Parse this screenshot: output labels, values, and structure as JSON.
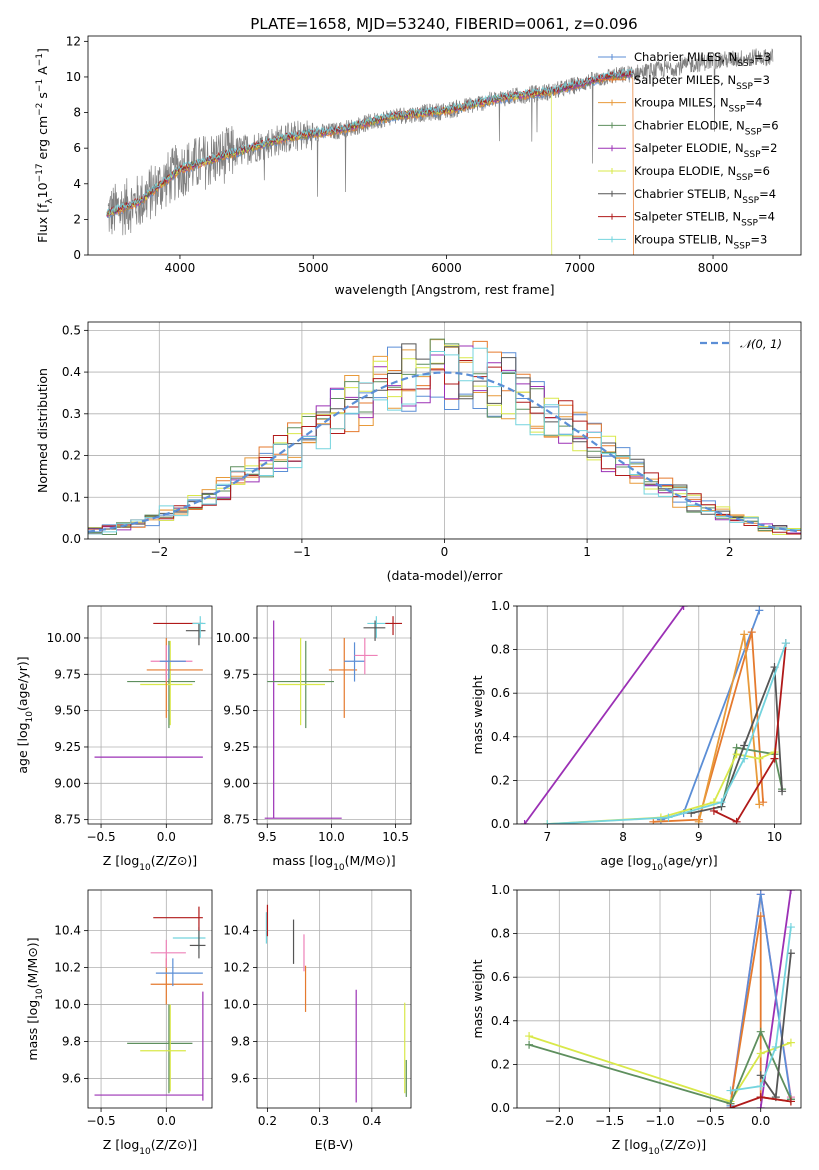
{
  "title": "PLATE=1658, MJD=53240, FIBERID=0061, z=0.096",
  "colors": {
    "series": [
      "#5b8ed6",
      "#e57a2e",
      "#e89a3a",
      "#5e8f5e",
      "#9b30b5",
      "#d9e84a",
      "#555555",
      "#b01a1a",
      "#74d4de"
    ],
    "spectrum": "#808080",
    "gaussian": "#5b8ed6",
    "extra_pink": "#ee82b8"
  },
  "legend": [
    {
      "name": "Chabrier MILES, N",
      "sub": "SSP",
      "tail": "=3"
    },
    {
      "name": "Salpeter MILES, N",
      "sub": "SSP",
      "tail": "=3"
    },
    {
      "name": "Kroupa MILES, N",
      "sub": "SSP",
      "tail": "=4"
    },
    {
      "name": "Chabrier ELODIE, N",
      "sub": "SSP",
      "tail": "=6"
    },
    {
      "name": "Salpeter ELODIE, N",
      "sub": "SSP",
      "tail": "=2"
    },
    {
      "name": "Kroupa ELODIE, N",
      "sub": "SSP",
      "tail": "=6"
    },
    {
      "name": "Chabrier STELIB, N",
      "sub": "SSP",
      "tail": "=4"
    },
    {
      "name": "Salpeter STELIB, N",
      "sub": "SSP",
      "tail": "=4"
    },
    {
      "name": "Kroupa STELIB, N",
      "sub": "SSP",
      "tail": "=3"
    }
  ],
  "chart_data": [
    {
      "type": "line",
      "panel": "spectrum",
      "xlabel": "wavelength [Angstrom, rest frame]",
      "ylabel": {
        "a": "Flux [f",
        "b": "λ",
        "c": "10",
        "d": "−17",
        "e": " erg cm",
        "f": "−2",
        "g": " s",
        "h": "−1",
        "i": " A",
        "j": "−1",
        "k": "]"
      },
      "xlim": [
        3310,
        8660
      ],
      "ylim": [
        0,
        12.3
      ],
      "xticks": [
        "4000",
        "5000",
        "6000",
        "7000",
        "8000"
      ],
      "yticks": [
        "0",
        "2",
        "4",
        "6",
        "8",
        "10",
        "12"
      ],
      "trend_x": [
        3450,
        3700,
        4000,
        4300,
        4800,
        5200,
        5600,
        6000,
        6400,
        6800,
        7200,
        7600,
        8000,
        8300
      ],
      "trend_y": [
        2.3,
        3.0,
        4.8,
        5.5,
        6.6,
        7.0,
        7.8,
        8.1,
        8.8,
        9.2,
        10.0,
        10.4,
        10.9,
        11.1
      ]
    },
    {
      "type": "histogram",
      "panel": "residuals",
      "xlabel": "(data-model)/error",
      "ylabel": "Normed distribution",
      "xlim": [
        -2.5,
        2.5
      ],
      "ylim": [
        0,
        0.52
      ],
      "xticks": [
        "−2",
        "−1",
        "0",
        "1",
        "2"
      ],
      "yticks": [
        "0.0",
        "0.1",
        "0.2",
        "0.3",
        "0.4",
        "0.5"
      ],
      "bin_width": 0.1,
      "gaussian_label": {
        "a": "𝒩",
        "b": "(0, 1)"
      }
    },
    {
      "type": "scatter",
      "panel": "age-vs-Z",
      "xlabel": {
        "a": "Z [log",
        "b": "10",
        "c": "(Z/Z",
        "d": "⊙",
        "e": ")]"
      },
      "ylabel": {
        "a": "age  [log",
        "b": "10",
        "c": "(age/yr)]"
      },
      "xlim": [
        -0.6,
        0.35
      ],
      "ylim": [
        8.72,
        10.22
      ],
      "xticks": [
        "−0.5",
        "0.0"
      ],
      "yticks": [
        "8.75",
        "9.00",
        "9.25",
        "9.50",
        "9.75",
        "10.00"
      ],
      "points": [
        {
          "c": 4,
          "x": -0.05,
          "xe": 0.33,
          "y": 9.18,
          "ye": 0.0,
          "x0": -0.55,
          "x1": 0.28,
          "y0": 8.76,
          "y1": 8.76
        },
        {
          "c": 3,
          "x": 0.02,
          "y": 9.7,
          "x0": -0.3,
          "x1": 0.22,
          "y0": 9.38,
          "y1": 9.98
        },
        {
          "c": 5,
          "x": 0.03,
          "y": 9.68,
          "x0": -0.2,
          "x1": 0.2,
          "y0": 9.4,
          "y1": 9.98
        },
        {
          "c": 1,
          "x": 0.0,
          "y": 9.78,
          "x0": -0.15,
          "x1": 0.28,
          "y0": 9.45,
          "y1": 10.0
        },
        {
          "c": "pink",
          "x": 0.0,
          "y": 9.84,
          "x0": -0.12,
          "x1": 0.2,
          "y0": 9.7,
          "y1": 9.95
        },
        {
          "c": 0,
          "x": 0.02,
          "y": 9.84,
          "x0": -0.05,
          "x1": 0.15,
          "y0": 9.72,
          "y1": 9.95
        },
        {
          "c": 7,
          "x": 0.1,
          "y": 10.1,
          "x0": -0.1,
          "x1": 0.28,
          "y0": 10.1,
          "y1": 10.1
        },
        {
          "c": 6,
          "x": 0.25,
          "y": 10.05,
          "x0": 0.15,
          "x1": 0.3,
          "y0": 9.95,
          "y1": 10.1
        },
        {
          "c": 8,
          "x": 0.26,
          "y": 10.1,
          "x0": 0.2,
          "x1": 0.3,
          "y0": 10.0,
          "y1": 10.15
        }
      ]
    },
    {
      "type": "scatter",
      "panel": "age-vs-mass",
      "xlabel": {
        "a": "mass [log",
        "b": "10",
        "c": "(M/M",
        "d": "⊙",
        "e": ")]"
      },
      "xlim": [
        9.42,
        10.62
      ],
      "ylim": [
        8.72,
        10.22
      ],
      "xticks": [
        "9.5",
        "10.0",
        "10.5"
      ],
      "yticks": [
        "8.75",
        "9.00",
        "9.25",
        "9.50",
        "9.75",
        "10.00"
      ],
      "points": [
        {
          "c": 4,
          "x": 9.55,
          "y": 8.76,
          "x0": 9.48,
          "x1": 10.08,
          "y0": 8.76,
          "y1": 10.12
        },
        {
          "c": 3,
          "x": 9.8,
          "y": 9.7,
          "x0": 9.5,
          "x1": 10.02,
          "y0": 9.38,
          "y1": 9.98
        },
        {
          "c": 5,
          "x": 9.76,
          "y": 9.68,
          "x0": 9.58,
          "x1": 9.95,
          "y0": 9.4,
          "y1": 10.0
        },
        {
          "c": 1,
          "x": 10.1,
          "y": 9.78,
          "x0": 9.98,
          "x1": 10.2,
          "y0": 9.45,
          "y1": 10.0
        },
        {
          "c": 0,
          "x": 10.18,
          "y": 9.84,
          "x0": 10.1,
          "x1": 10.26,
          "y0": 9.7,
          "y1": 9.97
        },
        {
          "c": "pink",
          "x": 10.26,
          "y": 9.88,
          "x0": 10.18,
          "x1": 10.36,
          "y0": 9.75,
          "y1": 10.0
        },
        {
          "c": 8,
          "x": 10.35,
          "y": 10.1,
          "x0": 10.28,
          "x1": 10.45,
          "y0": 10.0,
          "y1": 10.15
        },
        {
          "c": 6,
          "x": 10.34,
          "y": 10.07,
          "x0": 10.25,
          "x1": 10.42,
          "y0": 9.98,
          "y1": 10.12
        },
        {
          "c": 7,
          "x": 10.48,
          "y": 10.1,
          "x0": 10.42,
          "x1": 10.55,
          "y0": 10.02,
          "y1": 10.15
        }
      ]
    },
    {
      "type": "line",
      "panel": "mass-weight-vs-age",
      "xlabel": {
        "a": "age  [log",
        "b": "10",
        "c": "(age/yr)]"
      },
      "ylabel": "mass weight",
      "xlim": [
        6.6,
        10.35
      ],
      "ylim": [
        0,
        1
      ],
      "xticks": [
        "7",
        "8",
        "9",
        "10"
      ],
      "yticks": [
        "0.0",
        "0.2",
        "0.4",
        "0.6",
        "0.8",
        "1.0"
      ],
      "series": [
        {
          "c": 4,
          "x": [
            6.7,
            8.8
          ],
          "y": [
            0.0,
            1.0
          ]
        },
        {
          "c": 0,
          "x": [
            8.5,
            8.8,
            9.8
          ],
          "y": [
            0.02,
            0.05,
            0.98
          ]
        },
        {
          "c": 1,
          "x": [
            8.4,
            9.0,
            9.7,
            9.85
          ],
          "y": [
            0.01,
            0.02,
            0.88,
            0.1
          ]
        },
        {
          "c": 2,
          "x": [
            9.0,
            9.6,
            9.8
          ],
          "y": [
            0.01,
            0.87,
            0.09
          ]
        },
        {
          "c": 3,
          "x": [
            9.3,
            9.5,
            10.0,
            10.1
          ],
          "y": [
            0.08,
            0.35,
            0.32,
            0.16
          ]
        },
        {
          "c": 5,
          "x": [
            7.0,
            8.5,
            9.2,
            9.5,
            9.8,
            10.0
          ],
          "y": [
            0.0,
            0.03,
            0.1,
            0.32,
            0.3,
            0.33
          ]
        },
        {
          "c": 6,
          "x": [
            8.9,
            9.3,
            9.6,
            10.0,
            10.1
          ],
          "y": [
            0.05,
            0.08,
            0.36,
            0.72,
            0.15
          ]
        },
        {
          "c": 7,
          "x": [
            9.2,
            9.5,
            10.0,
            10.15
          ],
          "y": [
            0.06,
            0.01,
            0.3,
            0.83
          ]
        },
        {
          "c": 8,
          "x": [
            7.0,
            8.6,
            9.3,
            9.6,
            10.15
          ],
          "y": [
            0.0,
            0.03,
            0.1,
            0.3,
            0.83
          ]
        }
      ]
    },
    {
      "type": "scatter",
      "panel": "mass-vs-Z",
      "xlabel": {
        "a": "Z [log",
        "b": "10",
        "c": "(Z/Z",
        "d": "⊙",
        "e": ")]"
      },
      "ylabel": {
        "a": "mass [log",
        "b": "10",
        "c": "(M/M",
        "d": "⊙",
        "e": ")]"
      },
      "xlim": [
        -0.6,
        0.35
      ],
      "ylim": [
        9.44,
        10.62
      ],
      "xticks": [
        "−0.5",
        "0.0"
      ],
      "yticks": [
        "9.6",
        "9.8",
        "10.0",
        "10.2",
        "10.4"
      ],
      "points": [
        {
          "c": 4,
          "x": 0.28,
          "y": 9.51,
          "x0": -0.55,
          "x1": 0.28,
          "y0": 9.48,
          "y1": 10.07
        },
        {
          "c": 3,
          "x": 0.02,
          "y": 9.79,
          "x0": -0.3,
          "x1": 0.2,
          "y0": 9.52,
          "y1": 10.0
        },
        {
          "c": 5,
          "x": 0.03,
          "y": 9.75,
          "x0": -0.2,
          "x1": 0.15,
          "y0": 9.53,
          "y1": 10.0
        },
        {
          "c": 1,
          "x": 0.0,
          "y": 10.11,
          "x0": -0.12,
          "x1": 0.28,
          "y0": 10.0,
          "y1": 10.25
        },
        {
          "c": 0,
          "x": 0.05,
          "y": 10.17,
          "x0": -0.08,
          "x1": 0.28,
          "y0": 10.1,
          "y1": 10.25
        },
        {
          "c": "pink",
          "x": 0.0,
          "y": 10.28,
          "x0": -0.12,
          "x1": 0.15,
          "y0": 10.2,
          "y1": 10.35
        },
        {
          "c": 8,
          "x": 0.25,
          "y": 10.36,
          "x0": 0.05,
          "x1": 0.3,
          "y0": 10.3,
          "y1": 10.42
        },
        {
          "c": 6,
          "x": 0.25,
          "y": 10.32,
          "x0": 0.18,
          "x1": 0.3,
          "y0": 10.25,
          "y1": 10.4
        },
        {
          "c": 7,
          "x": 0.25,
          "y": 10.47,
          "x0": -0.1,
          "x1": 0.28,
          "y0": 10.4,
          "y1": 10.53
        }
      ]
    },
    {
      "type": "scatter",
      "panel": "mass-vs-ebv",
      "xlabel": "E(B-V)",
      "xlim": [
        0.18,
        0.475
      ],
      "ylim": [
        9.44,
        10.62
      ],
      "xticks": [
        "0.2",
        "0.3",
        "0.4"
      ],
      "yticks": [
        "9.6",
        "9.8",
        "10.0",
        "10.2",
        "10.4"
      ],
      "points": [
        {
          "c": 8,
          "x": 0.198,
          "y": 10.42,
          "y0": 10.33,
          "y1": 10.5
        },
        {
          "c": 7,
          "x": 0.2,
          "y": 10.45,
          "y0": 10.37,
          "y1": 10.54
        },
        {
          "c": 6,
          "x": 0.25,
          "y": 10.34,
          "y0": 10.22,
          "y1": 10.46
        },
        {
          "c": "pink",
          "x": 0.27,
          "y": 10.28,
          "y0": 10.18,
          "y1": 10.38
        },
        {
          "c": 1,
          "x": 0.273,
          "y": 10.1,
          "y0": 9.96,
          "y1": 10.21
        },
        {
          "c": 4,
          "x": 0.37,
          "y": 9.7,
          "y0": 9.47,
          "y1": 10.08
        },
        {
          "c": 5,
          "x": 0.463,
          "y": 9.75,
          "y0": 9.52,
          "y1": 10.01
        },
        {
          "c": 3,
          "x": 0.466,
          "y": 9.55,
          "y0": 9.5,
          "y1": 9.7
        }
      ]
    },
    {
      "type": "line",
      "panel": "mass-weight-vs-Z",
      "xlabel": {
        "a": "Z [log",
        "b": "10",
        "c": "(Z/Z",
        "d": "⊙",
        "e": ")]"
      },
      "ylabel": "mass weight",
      "xlim": [
        -2.42,
        0.4
      ],
      "ylim": [
        0,
        1
      ],
      "xticks": [
        "−2.0",
        "−1.5",
        "−1.0",
        "−0.5",
        "0.0"
      ],
      "yticks": [
        "0.0",
        "0.2",
        "0.4",
        "0.6",
        "0.8",
        "1.0"
      ],
      "series": [
        {
          "c": 4,
          "x": [
            0.0,
            0.3
          ],
          "y": [
            0.0,
            1.0
          ]
        },
        {
          "c": "pink",
          "x": [
            -0.3,
            0.0,
            0.3
          ],
          "y": [
            0.02,
            0.98,
            0.05
          ]
        },
        {
          "c": 0,
          "x": [
            -0.3,
            0.0,
            0.3
          ],
          "y": [
            0.01,
            0.98,
            0.04
          ]
        },
        {
          "c": 1,
          "x": [
            -0.3,
            0.0,
            0.0,
            0.3
          ],
          "y": [
            0.02,
            0.88,
            0.05,
            0.03
          ]
        },
        {
          "c": 5,
          "x": [
            -2.3,
            -0.3,
            0.0,
            0.3
          ],
          "y": [
            0.33,
            0.03,
            0.25,
            0.3
          ]
        },
        {
          "c": 3,
          "x": [
            -2.3,
            -0.3,
            0.0,
            0.3
          ],
          "y": [
            0.29,
            0.02,
            0.35,
            0.04
          ]
        },
        {
          "c": 6,
          "x": [
            0.0,
            0.15,
            0.3
          ],
          "y": [
            0.15,
            0.05,
            0.71
          ]
        },
        {
          "c": 7,
          "x": [
            -0.3,
            0.0,
            0.3
          ],
          "y": [
            0.0,
            0.05,
            0.03
          ]
        },
        {
          "c": 8,
          "x": [
            -0.3,
            0.0,
            0.15,
            0.3
          ],
          "y": [
            0.08,
            0.1,
            0.28,
            0.83
          ]
        }
      ]
    }
  ]
}
